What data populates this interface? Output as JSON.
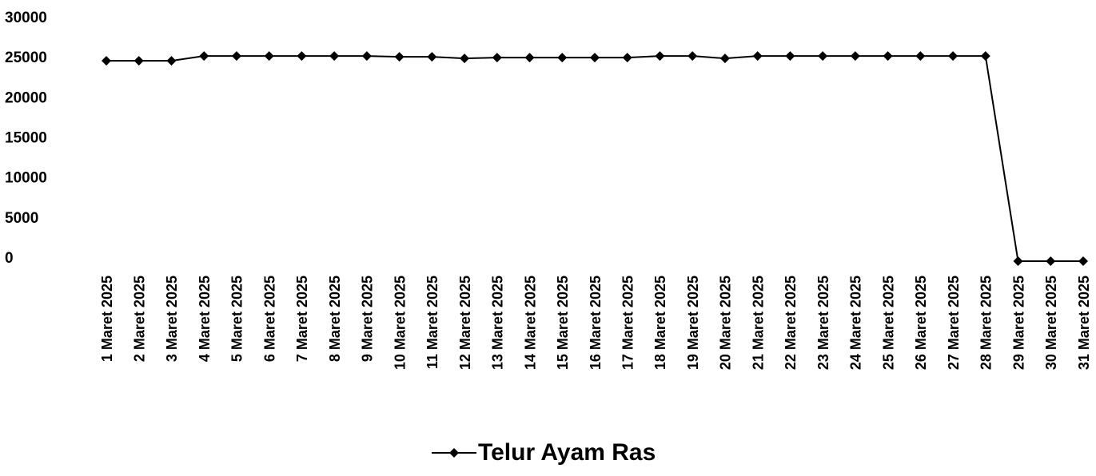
{
  "chart_data": {
    "type": "line",
    "categories": [
      "1 Maret 2025",
      "2 Maret 2025",
      "3 Maret 2025",
      "4 Maret 2025",
      "5 Maret 2025",
      "6 Maret 2025",
      "7 Maret 2025",
      "8 Maret 2025",
      "9 Maret 2025",
      "10 Maret 2025",
      "11 Maret 2025",
      "12 Maret 2025",
      "13 Maret 2025",
      "14 Maret 2025",
      "15 Maret 2025",
      "16 Maret 2025",
      "17 Maret 2025",
      "18 Maret 2025",
      "19 Maret 2025",
      "20 Maret 2025",
      "21 Maret 2025",
      "22 Maret 2025",
      "23 Maret 2025",
      "24 Maret 2025",
      "25 Maret 2025",
      "26 Maret 2025",
      "27 Maret 2025",
      "28 Maret 2025",
      "29 Maret 2025",
      "30 Maret 2025",
      "31 Maret 2025"
    ],
    "series": [
      {
        "name": "Telur Ayam Ras",
        "color": "#000000",
        "values": [
          25000,
          25000,
          25000,
          25600,
          25600,
          25600,
          25600,
          25600,
          25600,
          25500,
          25500,
          25300,
          25400,
          25400,
          25400,
          25400,
          25400,
          25600,
          25600,
          25300,
          25600,
          25600,
          25600,
          25600,
          25600,
          25600,
          25600,
          25600,
          0,
          0,
          0
        ]
      }
    ],
    "ylim": [
      0,
      30000
    ],
    "yticks": [
      0,
      5000,
      10000,
      15000,
      20000,
      25000,
      30000
    ],
    "grid": false,
    "legend": "bottom"
  }
}
